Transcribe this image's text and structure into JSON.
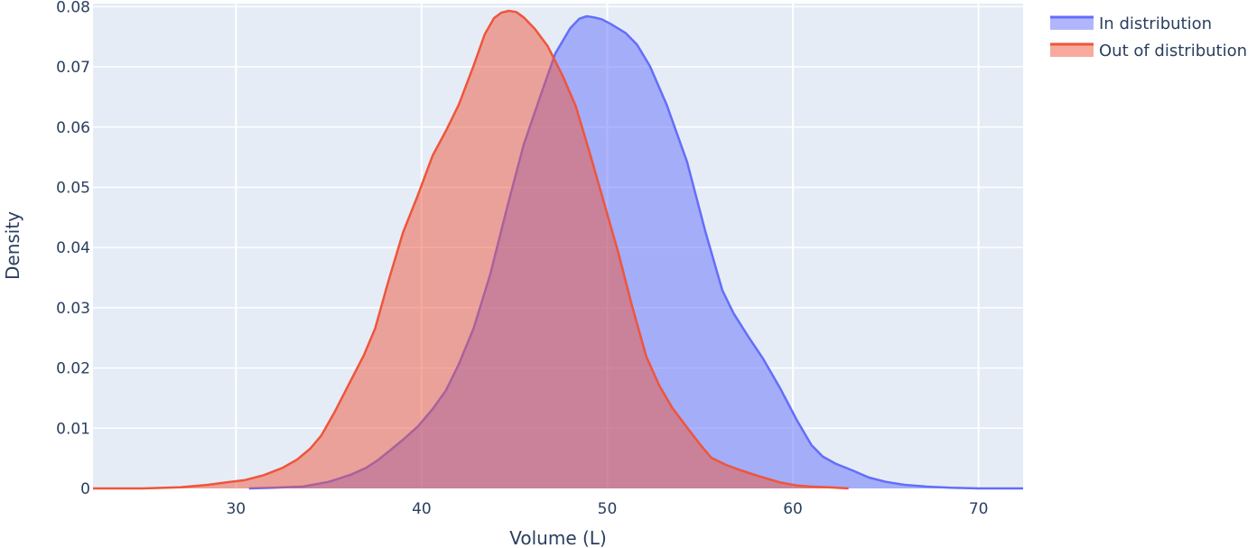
{
  "chart_data": {
    "type": "area",
    "xlabel": "Volume (L)",
    "ylabel": "Density",
    "xlim": [
      22.3,
      72.4
    ],
    "ylim": [
      0,
      0.0805
    ],
    "x_ticks": [
      30,
      40,
      50,
      60,
      70
    ],
    "y_ticks": [
      0,
      0.01,
      0.02,
      0.03,
      0.04,
      0.05,
      0.06,
      0.07,
      0.08
    ],
    "y_tick_labels": [
      "0",
      "0.01",
      "0.02",
      "0.03",
      "0.04",
      "0.05",
      "0.06",
      "0.07",
      "0.08"
    ],
    "grid": true,
    "legend_position": "top-right",
    "background_color": "#e5ecf6",
    "series": [
      {
        "name": "In distribution",
        "line_color": "#636efa",
        "fill_color": "rgba(99,110,250,0.5)",
        "x": [
          30.7,
          32.0,
          33.6,
          35.0,
          36.2,
          37.0,
          37.6,
          38.3,
          39.0,
          39.8,
          40.6,
          41.3,
          42.0,
          42.8,
          43.7,
          44.6,
          45.5,
          46.4,
          47.2,
          48.0,
          48.5,
          48.9,
          49.3,
          49.7,
          50.2,
          51.0,
          51.6,
          52.3,
          53.2,
          54.3,
          55.3,
          56.2,
          56.8,
          57.6,
          58.4,
          59.3,
          60.2,
          61.0,
          61.6,
          62.3,
          63.2,
          64.1,
          65.0,
          66.0,
          67.2,
          68.5,
          70.0,
          72.4
        ],
        "y": [
          0.0,
          0.0001,
          0.0003,
          0.0011,
          0.0023,
          0.0034,
          0.0046,
          0.0063,
          0.0081,
          0.0103,
          0.0132,
          0.0162,
          0.0206,
          0.0266,
          0.0356,
          0.0466,
          0.0571,
          0.0652,
          0.0722,
          0.0764,
          0.078,
          0.0784,
          0.0782,
          0.0779,
          0.0771,
          0.0756,
          0.0737,
          0.0701,
          0.0637,
          0.0542,
          0.0425,
          0.0329,
          0.0291,
          0.0252,
          0.0215,
          0.0167,
          0.0114,
          0.0072,
          0.0053,
          0.0041,
          0.003,
          0.0018,
          0.0011,
          0.0006,
          0.0003,
          0.0001,
          0.0,
          0.0
        ]
      },
      {
        "name": "Out of distribution",
        "line_color": "#ef553b",
        "fill_color": "rgba(239,85,59,0.5)",
        "x": [
          22.3,
          25.0,
          27.0,
          28.5,
          29.5,
          30.5,
          31.5,
          32.5,
          33.3,
          34.0,
          34.6,
          35.3,
          36.1,
          36.9,
          37.5,
          38.2,
          39.0,
          39.8,
          40.6,
          41.3,
          42.0,
          42.8,
          43.4,
          43.9,
          44.3,
          44.7,
          45.1,
          45.5,
          46.1,
          46.8,
          47.6,
          48.3,
          49.0,
          49.8,
          50.6,
          51.3,
          52.1,
          52.8,
          53.5,
          54.3,
          55.0,
          55.6,
          56.4,
          57.2,
          58.2,
          59.3,
          60.2,
          61.0,
          61.9,
          63.0
        ],
        "y": [
          0.0,
          0.0,
          0.0002,
          0.0006,
          0.001,
          0.0014,
          0.0022,
          0.0034,
          0.0048,
          0.0066,
          0.0088,
          0.0126,
          0.0174,
          0.0222,
          0.0266,
          0.0343,
          0.0425,
          0.0487,
          0.0553,
          0.0593,
          0.0637,
          0.0702,
          0.0754,
          0.0781,
          0.079,
          0.0793,
          0.0791,
          0.0782,
          0.0763,
          0.0734,
          0.0685,
          0.0635,
          0.0563,
          0.0477,
          0.0391,
          0.0307,
          0.0219,
          0.0171,
          0.0134,
          0.0101,
          0.0073,
          0.0051,
          0.0039,
          0.003,
          0.002,
          0.001,
          0.0005,
          0.0003,
          0.0002,
          0.0
        ]
      }
    ]
  }
}
